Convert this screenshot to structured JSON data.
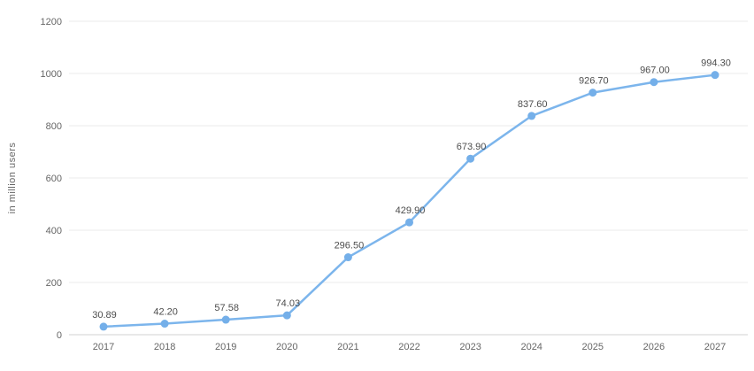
{
  "chart_data": {
    "type": "line",
    "title": "",
    "xlabel": "",
    "ylabel": "in million users",
    "categories": [
      "2017",
      "2018",
      "2019",
      "2020",
      "2021",
      "2022",
      "2023",
      "2024",
      "2025",
      "2026",
      "2027"
    ],
    "series": [
      {
        "name": "users",
        "values": [
          30.89,
          42.2,
          57.58,
          74.03,
          296.5,
          429.9,
          673.9,
          837.6,
          926.7,
          967.0,
          994.3
        ],
        "value_labels": [
          "30.89",
          "42.20",
          "57.58",
          "74.03",
          "296.50",
          "429.90",
          "673.90",
          "837.60",
          "926.70",
          "967.00",
          "994.30"
        ]
      }
    ],
    "ylim": [
      0,
      1200
    ],
    "yticks": [
      0,
      200,
      400,
      600,
      800,
      1000,
      1200
    ],
    "grid": true,
    "legend_position": "none",
    "colors": {
      "line": "#7cb5ec",
      "marker": "#74afe9",
      "gridline": "#ebebeb",
      "axis_line": "#d2d2d2",
      "tick_label": "#666666",
      "data_label": "#4d4d4d",
      "background": "#ffffff"
    }
  }
}
